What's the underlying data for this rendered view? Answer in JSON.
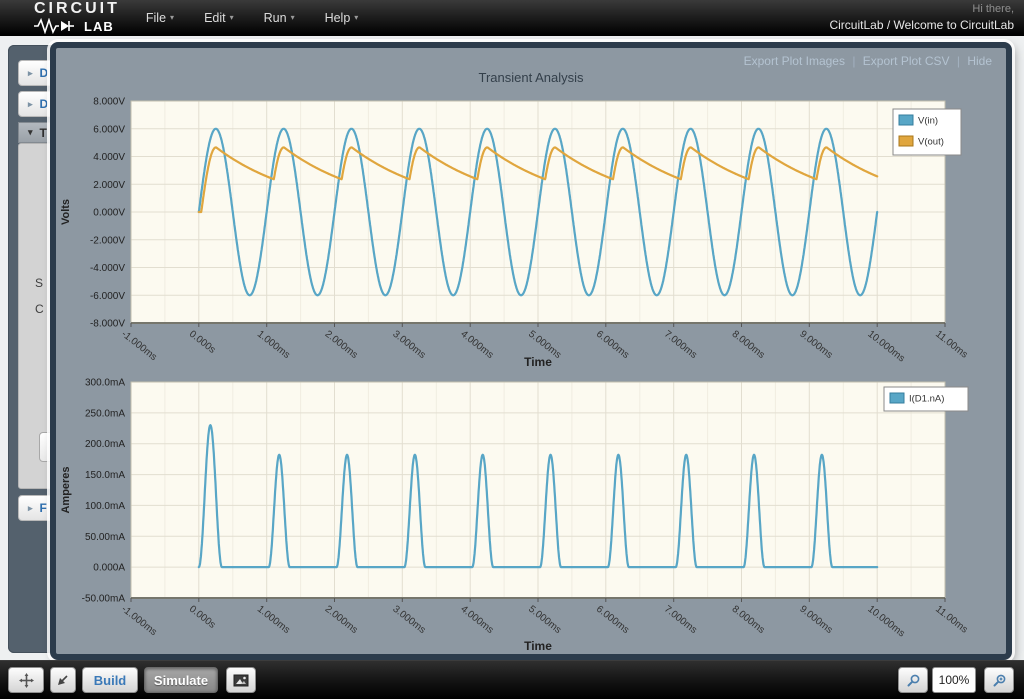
{
  "header": {
    "logo": {
      "line1": "CIRCUIT",
      "line2": "LAB"
    },
    "menu": [
      {
        "label": "File"
      },
      {
        "label": "Edit"
      },
      {
        "label": "Run"
      },
      {
        "label": "Help"
      }
    ],
    "greeting": "Hi there,",
    "account": "CircuitLab / Welcome to CircuitLab"
  },
  "sidebar": {
    "items": [
      {
        "label": "D"
      },
      {
        "label": "D"
      },
      {
        "label": "T",
        "selected": true
      },
      {
        "label": "F"
      }
    ],
    "panel_fragments": [
      "S",
      "C"
    ]
  },
  "plot_window": {
    "links": {
      "export_images": "Export Plot Images",
      "separator": "|",
      "export_csv": "Export Plot CSV",
      "hide": "Hide"
    },
    "title": "Transient Analysis"
  },
  "chart_data": [
    {
      "type": "line",
      "title": "Transient Analysis",
      "xlabel": "Time",
      "ylabel": "Volts",
      "xlim_ms": [
        -1,
        11
      ],
      "ylim": [
        -8,
        8
      ],
      "grid": true,
      "legend_position": "top-right",
      "x_ticks": [
        {
          "ms": -1,
          "label": "-1.000ms"
        },
        {
          "ms": 0,
          "label": "0.000s"
        },
        {
          "ms": 1,
          "label": "1.000ms"
        },
        {
          "ms": 2,
          "label": "2.000ms"
        },
        {
          "ms": 3,
          "label": "3.000ms"
        },
        {
          "ms": 4,
          "label": "4.000ms"
        },
        {
          "ms": 5,
          "label": "5.000ms"
        },
        {
          "ms": 6,
          "label": "6.000ms"
        },
        {
          "ms": 7,
          "label": "7.000ms"
        },
        {
          "ms": 8,
          "label": "8.000ms"
        },
        {
          "ms": 9,
          "label": "9.000ms"
        },
        {
          "ms": 10,
          "label": "10.000ms"
        },
        {
          "ms": 11,
          "label": "11.00ms"
        }
      ],
      "y_ticks": [
        {
          "v": 8,
          "label": "8.000V"
        },
        {
          "v": 6,
          "label": "6.000V"
        },
        {
          "v": 4,
          "label": "4.000V"
        },
        {
          "v": 2,
          "label": "2.000V"
        },
        {
          "v": 0,
          "label": "0.000V"
        },
        {
          "v": -2,
          "label": "-2.000V"
        },
        {
          "v": -4,
          "label": "-4.000V"
        },
        {
          "v": -6,
          "label": "-6.000V"
        },
        {
          "v": -8,
          "label": "-8.000V"
        }
      ],
      "legend": [
        "V(in)",
        "V(out)"
      ],
      "series": [
        {
          "name": "V(in)",
          "color": "#58a6c6",
          "kind": "sine",
          "amplitude_V": 6,
          "period_ms": 1,
          "t_start_ms": 0,
          "t_end_ms": 10
        },
        {
          "name": "V(out)",
          "color": "#e0a63e",
          "kind": "rectified_rc",
          "source_amplitude_V": 6,
          "diode_drop_V": 1.35,
          "decay_tau_ms": 1.25,
          "period_ms": 1,
          "peak_V": 4.65,
          "valley_V": 2.47,
          "t_start_ms": 0,
          "t_end_ms": 10
        }
      ]
    },
    {
      "type": "line",
      "xlabel": "Time",
      "ylabel": "Amperes",
      "xlim_ms": [
        -1,
        11
      ],
      "ylim": [
        -0.05,
        0.3
      ],
      "grid": true,
      "legend_position": "top-right",
      "x_ticks": [
        {
          "ms": -1,
          "label": "-1.000ms"
        },
        {
          "ms": 0,
          "label": "0.000s"
        },
        {
          "ms": 1,
          "label": "1.000ms"
        },
        {
          "ms": 2,
          "label": "2.000ms"
        },
        {
          "ms": 3,
          "label": "3.000ms"
        },
        {
          "ms": 4,
          "label": "4.000ms"
        },
        {
          "ms": 5,
          "label": "5.000ms"
        },
        {
          "ms": 6,
          "label": "6.000ms"
        },
        {
          "ms": 7,
          "label": "7.000ms"
        },
        {
          "ms": 8,
          "label": "8.000ms"
        },
        {
          "ms": 9,
          "label": "9.000ms"
        },
        {
          "ms": 10,
          "label": "10.000ms"
        },
        {
          "ms": 11,
          "label": "11.00ms"
        }
      ],
      "y_ticks": [
        {
          "v": 0.3,
          "label": "300.0mA"
        },
        {
          "v": 0.25,
          "label": "250.0mA"
        },
        {
          "v": 0.2,
          "label": "200.0mA"
        },
        {
          "v": 0.15,
          "label": "150.0mA"
        },
        {
          "v": 0.1,
          "label": "100.0mA"
        },
        {
          "v": 0.05,
          "label": "50.00mA"
        },
        {
          "v": 0,
          "label": "0.000A"
        },
        {
          "v": -0.05,
          "label": "-50.00mA"
        }
      ],
      "legend": [
        "I(D1.nA)"
      ],
      "series": [
        {
          "name": "I(D1.nA)",
          "color": "#58a6c6",
          "kind": "pulse_train",
          "t_start_ms": 0,
          "t_end_ms": 10,
          "pulses": [
            {
              "t_ms": 0.17,
              "width_ms": 0.34,
              "peak_A": 0.23
            },
            {
              "t_ms": 1.185,
              "width_ms": 0.31,
              "peak_A": 0.182
            },
            {
              "t_ms": 2.185,
              "width_ms": 0.31,
              "peak_A": 0.182
            },
            {
              "t_ms": 3.185,
              "width_ms": 0.31,
              "peak_A": 0.182
            },
            {
              "t_ms": 4.185,
              "width_ms": 0.31,
              "peak_A": 0.182
            },
            {
              "t_ms": 5.185,
              "width_ms": 0.31,
              "peak_A": 0.182
            },
            {
              "t_ms": 6.185,
              "width_ms": 0.31,
              "peak_A": 0.182
            },
            {
              "t_ms": 7.185,
              "width_ms": 0.31,
              "peak_A": 0.182
            },
            {
              "t_ms": 8.185,
              "width_ms": 0.31,
              "peak_A": 0.182
            },
            {
              "t_ms": 9.185,
              "width_ms": 0.31,
              "peak_A": 0.182
            }
          ]
        }
      ]
    }
  ],
  "toolbar": {
    "build_label": "Build",
    "simulate_label": "Simulate",
    "zoom_level": "100%"
  },
  "colors": {
    "series_blue": "#58a6c6",
    "series_orange": "#e0a63e",
    "panel": "#8d98a2",
    "panel_border": "#2c3c4c",
    "link": "#b4c3d1",
    "plot_bg": "#fcfaf0"
  }
}
